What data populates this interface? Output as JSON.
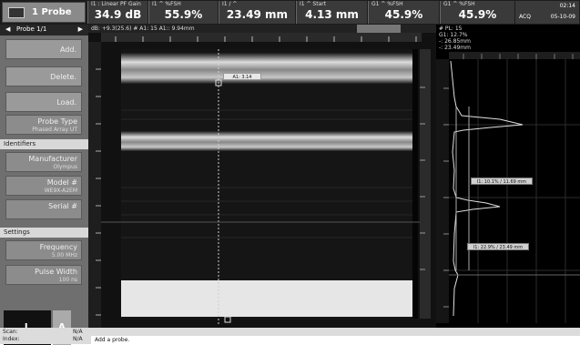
{
  "topbar": {
    "probe_label": "1 Probe",
    "readings": [
      {
        "label": "I1 : Linear PF Gain",
        "value": "34.9 dB"
      },
      {
        "label": "I1 ^ %FSH",
        "value": "55.9%"
      },
      {
        "label": "I1 / ^",
        "value": "23.49 mm"
      },
      {
        "label": "I1 ^ Start",
        "value": "4.13 mm"
      },
      {
        "label": "G1 ^ %FSH",
        "value": "45.9%"
      },
      {
        "label": "G1 ^ %FSH",
        "value": "45.9%"
      }
    ],
    "clock_time": "02:14",
    "clock_acq": "ACQ",
    "clock_date": "05-10-09"
  },
  "left_panel": {
    "nav_label": "Probe 1/1",
    "prev_icon": "left-arrow-icon",
    "next_icon": "right-arrow-icon",
    "buttons": [
      "Add.",
      "Delete.",
      "Load."
    ],
    "probe_type": {
      "label": "Probe Type",
      "value": "Phased Array UT"
    },
    "identifiers_header": "Identifiers",
    "manufacturer": {
      "label": "Manufacturer",
      "value": "Olympus"
    },
    "model": {
      "label": "Model #",
      "value": "WE9X-A2EM"
    },
    "serial": {
      "label": "Serial #",
      "value": ""
    },
    "settings_header": "Settings",
    "frequency": {
      "label": "Frequency",
      "value": "5.00 MHz"
    },
    "pulse_width": {
      "label": "Pulse Width",
      "value": "100 ns"
    },
    "toggle_l": "L",
    "toggle_a": "A"
  },
  "center": {
    "info_left": "dB: +9.3(25.6)  # A1: 15  A1:: 9.94mm",
    "info_right": "",
    "gate_label": "A1: 3.14"
  },
  "right_panel": {
    "pl_line": "# PL: 15",
    "ga_line": "G1: 12.7%",
    "z1_line": "-: 26.85mm",
    "z2_line": "-: 23.49mm",
    "label1": "I1: 10.1% / 11.69 mm",
    "label2": "I1: 22.9% / 23.49 mm"
  },
  "bottom": {
    "scan_label": "Scan:",
    "index_label": "Index:",
    "scan_value": "N/A",
    "index_value": "N/A",
    "status": "Add a probe."
  },
  "colors": {
    "top_bg": "#1c1c1c",
    "panel_bg": "#6f6f6f",
    "button_bg": "#9a9a9a",
    "image_bg": "#111111"
  }
}
